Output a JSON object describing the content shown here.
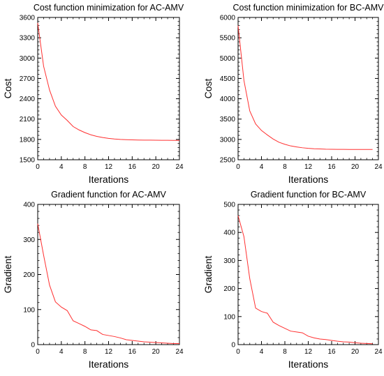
{
  "chart_data": [
    {
      "type": "line",
      "title": "Cost function minimization for AC-AMV",
      "xlabel": "Iterations",
      "ylabel": "Cost",
      "xlim": [
        0,
        24
      ],
      "ylim": [
        1500,
        3600
      ],
      "xticks": [
        0,
        4,
        8,
        12,
        16,
        20,
        24
      ],
      "yticks": [
        1500,
        1800,
        2100,
        2400,
        2700,
        3000,
        3300,
        3600
      ],
      "grid": false,
      "color": "#ff3030",
      "series": [
        {
          "x": [
            0,
            1,
            2,
            3,
            4,
            5,
            6,
            7,
            8,
            9,
            10,
            11,
            12,
            13,
            14,
            15,
            16,
            17,
            18,
            19,
            20,
            21,
            22,
            23,
            24
          ],
          "values": [
            3520,
            2880,
            2530,
            2290,
            2160,
            2080,
            1990,
            1940,
            1900,
            1868,
            1845,
            1828,
            1815,
            1806,
            1800,
            1796,
            1793,
            1791,
            1790,
            1789,
            1788,
            1787,
            1787,
            1786,
            1786
          ]
        }
      ]
    },
    {
      "type": "line",
      "title": "Cost function minimization for BC-AMV",
      "xlabel": "Iterations",
      "ylabel": "Cost",
      "xlim": [
        0,
        24
      ],
      "ylim": [
        2500,
        6000
      ],
      "xticks": [
        0,
        4,
        8,
        12,
        16,
        20,
        24
      ],
      "yticks": [
        2500,
        3000,
        3500,
        4000,
        4500,
        5000,
        5500,
        6000
      ],
      "grid": false,
      "color": "#ff3030",
      "series": [
        {
          "x": [
            0,
            1,
            2,
            3,
            4,
            5,
            6,
            7,
            8,
            9,
            10,
            11,
            12,
            13,
            14,
            15,
            16,
            17,
            18,
            19,
            20,
            21,
            22,
            23
          ],
          "values": [
            5800,
            4450,
            3700,
            3380,
            3220,
            3110,
            3010,
            2930,
            2880,
            2840,
            2815,
            2795,
            2780,
            2770,
            2765,
            2760,
            2758,
            2756,
            2755,
            2754,
            2753,
            2753,
            2752,
            2752
          ]
        }
      ]
    },
    {
      "type": "line",
      "title": "Gradient function for AC-AMV",
      "xlabel": "Iterations",
      "ylabel": "Gradient",
      "xlim": [
        0,
        24
      ],
      "ylim": [
        0,
        400
      ],
      "xticks": [
        0,
        4,
        8,
        12,
        16,
        20,
        24
      ],
      "yticks": [
        0,
        100,
        200,
        300,
        400
      ],
      "grid": false,
      "color": "#ff3030",
      "series": [
        {
          "x": [
            0,
            1,
            2,
            3,
            4,
            5,
            6,
            7,
            8,
            9,
            10,
            11,
            12,
            13,
            14,
            15,
            16,
            17,
            18,
            19,
            20,
            21,
            22,
            23,
            24
          ],
          "values": [
            345,
            255,
            170,
            122,
            107,
            97,
            68,
            60,
            52,
            42,
            40,
            29,
            26,
            23,
            19,
            14,
            12,
            10,
            8,
            7,
            6,
            5,
            4,
            3,
            3
          ]
        }
      ]
    },
    {
      "type": "line",
      "title": "Gradient function for BC-AMV",
      "xlabel": "Iterations",
      "ylabel": "Gradient",
      "xlim": [
        0,
        24
      ],
      "ylim": [
        0,
        500
      ],
      "xticks": [
        0,
        4,
        8,
        12,
        16,
        20,
        24
      ],
      "yticks": [
        0,
        100,
        200,
        300,
        400,
        500
      ],
      "grid": false,
      "color": "#ff3030",
      "series": [
        {
          "x": [
            0,
            1,
            2,
            3,
            4,
            5,
            6,
            7,
            8,
            9,
            10,
            11,
            12,
            13,
            14,
            15,
            16,
            17,
            18,
            19,
            20,
            21,
            22,
            23
          ],
          "values": [
            460,
            385,
            235,
            130,
            118,
            112,
            80,
            68,
            58,
            48,
            45,
            42,
            30,
            24,
            20,
            18,
            15,
            12,
            10,
            9,
            7,
            5,
            4,
            3
          ]
        }
      ]
    }
  ]
}
